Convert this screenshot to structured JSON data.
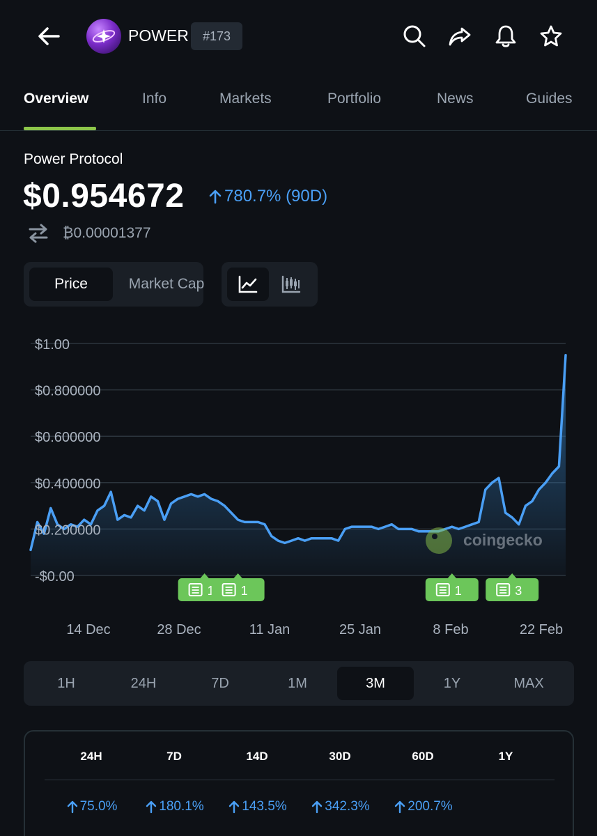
{
  "header": {
    "symbol": "POWER",
    "rank": "#173",
    "icons": [
      "back-arrow-icon",
      "search-icon",
      "share-icon",
      "bell-icon",
      "star-icon"
    ]
  },
  "tabs": [
    {
      "label": "Overview",
      "active": true
    },
    {
      "label": "Info",
      "active": false
    },
    {
      "label": "Markets",
      "active": false
    },
    {
      "label": "Portfolio",
      "active": false
    },
    {
      "label": "News",
      "active": false
    },
    {
      "label": "Guides",
      "active": false
    }
  ],
  "coin": {
    "name": "Power Protocol",
    "price": "$0.954672",
    "change": "780.7% (90D)",
    "btc_price": "₿0.00001377"
  },
  "toggles": {
    "price_label": "Price",
    "market_cap_label": "Market Cap"
  },
  "colors": {
    "accent_green": "#8dc64a",
    "positive_blue": "#4a9ff5",
    "news_green": "#6cc65a",
    "background": "#0e1116"
  },
  "chart_data": {
    "type": "area",
    "y_ticks": [
      "$1.00",
      "$0.800000",
      "$0.600000",
      "$0.400000",
      "$0.200000",
      "-$0.00"
    ],
    "ylim": [
      0,
      1.0
    ],
    "x_ticks": [
      "14 Dec",
      "28 Dec",
      "11 Jan",
      "25 Jan",
      "8 Feb",
      "22 Feb"
    ],
    "watermark": "coingecko",
    "grid": true,
    "series": [
      {
        "x": [
          "2024-12-05",
          "2024-12-06",
          "2024-12-07",
          "2024-12-08",
          "2024-12-09",
          "2024-12-10",
          "2024-12-11",
          "2024-12-12",
          "2024-12-13",
          "2024-12-14",
          "2024-12-15",
          "2024-12-16",
          "2024-12-17",
          "2024-12-18",
          "2024-12-19",
          "2024-12-20",
          "2024-12-21",
          "2024-12-22",
          "2024-12-23",
          "2024-12-24",
          "2024-12-25",
          "2024-12-26",
          "2024-12-27",
          "2024-12-28",
          "2024-12-29",
          "2024-12-30",
          "2024-12-31",
          "2025-01-01",
          "2025-01-02",
          "2025-01-03",
          "2025-01-04",
          "2025-01-05",
          "2025-01-06",
          "2025-01-07",
          "2025-01-08",
          "2025-01-09",
          "2025-01-10",
          "2025-01-11",
          "2025-01-12",
          "2025-01-13",
          "2025-01-14",
          "2025-01-15",
          "2025-01-16",
          "2025-01-17",
          "2025-01-18",
          "2025-01-19",
          "2025-01-20",
          "2025-01-21",
          "2025-01-22",
          "2025-01-23",
          "2025-01-24",
          "2025-01-25",
          "2025-01-26",
          "2025-01-27",
          "2025-01-28",
          "2025-01-29",
          "2025-01-30",
          "2025-01-31",
          "2025-02-01",
          "2025-02-02",
          "2025-02-03",
          "2025-02-04",
          "2025-02-05",
          "2025-02-06",
          "2025-02-07",
          "2025-02-08",
          "2025-02-09",
          "2025-02-10",
          "2025-02-11",
          "2025-02-12",
          "2025-02-13",
          "2025-02-14",
          "2025-02-15",
          "2025-02-16",
          "2025-02-17",
          "2025-02-18",
          "2025-02-19",
          "2025-02-20",
          "2025-02-21",
          "2025-02-22",
          "2025-02-23"
        ],
        "values": [
          0.11,
          0.23,
          0.18,
          0.29,
          0.22,
          0.2,
          0.22,
          0.21,
          0.24,
          0.22,
          0.28,
          0.3,
          0.36,
          0.24,
          0.26,
          0.25,
          0.3,
          0.28,
          0.34,
          0.32,
          0.24,
          0.31,
          0.33,
          0.34,
          0.35,
          0.34,
          0.35,
          0.33,
          0.32,
          0.3,
          0.27,
          0.24,
          0.23,
          0.23,
          0.23,
          0.22,
          0.17,
          0.15,
          0.14,
          0.15,
          0.16,
          0.15,
          0.16,
          0.16,
          0.16,
          0.16,
          0.15,
          0.2,
          0.21,
          0.21,
          0.21,
          0.21,
          0.2,
          0.21,
          0.22,
          0.2,
          0.2,
          0.2,
          0.19,
          0.19,
          0.19,
          0.19,
          0.2,
          0.21,
          0.2,
          0.21,
          0.22,
          0.23,
          0.37,
          0.4,
          0.42,
          0.27,
          0.25,
          0.22,
          0.3,
          0.32,
          0.37,
          0.4,
          0.44,
          0.47,
          0.95
        ]
      }
    ],
    "news_markers": [
      {
        "date": "2024-12-31",
        "count": "1"
      },
      {
        "date": "2025-01-05",
        "count": "1"
      },
      {
        "date": "2025-02-06",
        "count": "1"
      },
      {
        "date": "2025-02-15",
        "count": "3"
      }
    ]
  },
  "ranges": [
    {
      "label": "1H",
      "active": false
    },
    {
      "label": "24H",
      "active": false
    },
    {
      "label": "7D",
      "active": false
    },
    {
      "label": "1M",
      "active": false
    },
    {
      "label": "3M",
      "active": true
    },
    {
      "label": "1Y",
      "active": false
    },
    {
      "label": "MAX",
      "active": false
    }
  ],
  "performance": [
    {
      "label": "24H",
      "value": "75.0%"
    },
    {
      "label": "7D",
      "value": "180.1%"
    },
    {
      "label": "14D",
      "value": "143.5%"
    },
    {
      "label": "30D",
      "value": "342.3%"
    },
    {
      "label": "60D",
      "value": "200.7%"
    },
    {
      "label": "1Y",
      "value": ""
    }
  ]
}
